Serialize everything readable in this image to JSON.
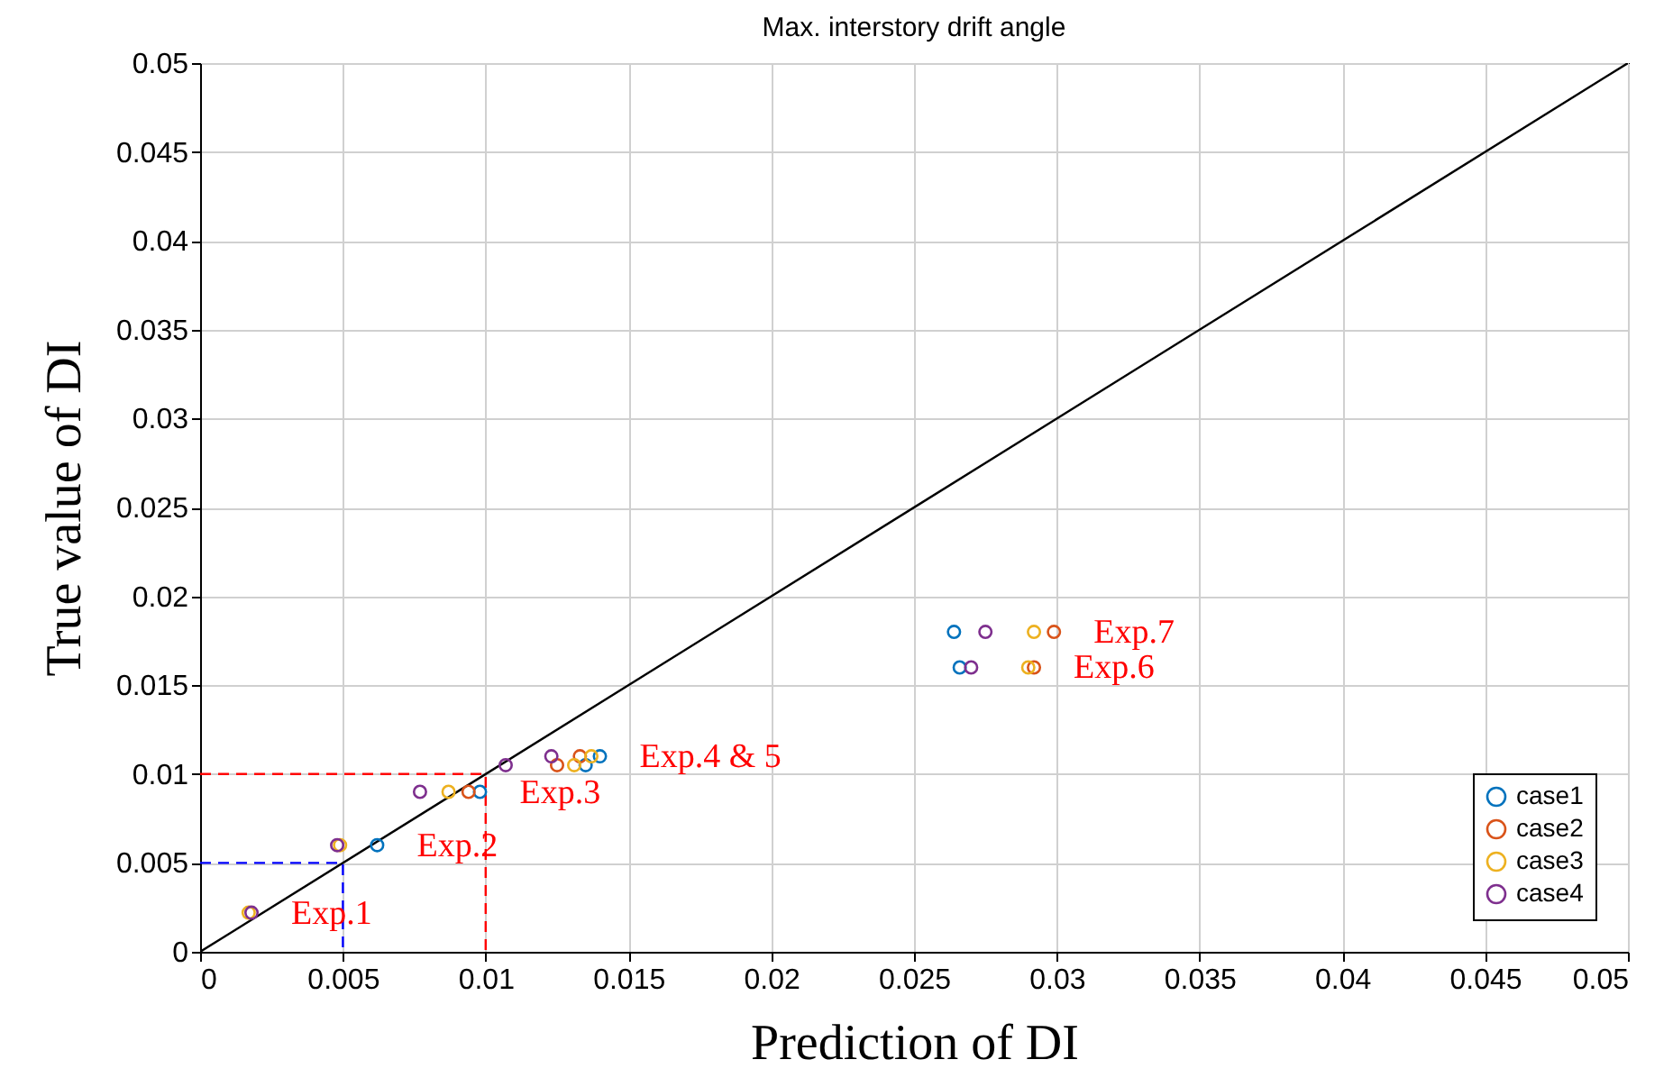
{
  "chart_data": {
    "type": "scatter",
    "title": "Max. interstory drift angle",
    "xlabel": "Prediction of DI",
    "ylabel": "True value of DI",
    "xlim": [
      0,
      0.05
    ],
    "ylim": [
      0,
      0.05
    ],
    "xticks": [
      0,
      0.005,
      0.01,
      0.015,
      0.02,
      0.025,
      0.03,
      0.035,
      0.04,
      0.045,
      0.05
    ],
    "yticks": [
      0,
      0.005,
      0.01,
      0.015,
      0.02,
      0.025,
      0.03,
      0.035,
      0.04,
      0.045,
      0.05
    ],
    "grid": true,
    "legend": "bottom right",
    "marker": "circle",
    "series": [
      {
        "type": "line",
        "color": "#000000",
        "line_style": "solid",
        "marker": "none",
        "x": [
          0,
          0.05
        ],
        "values": [
          0,
          0.05
        ]
      },
      {
        "type": "line",
        "color": "#ff0000",
        "line_style": "dashed",
        "marker": "none",
        "x": [
          0,
          0.01,
          0.01
        ],
        "values": [
          0.01,
          0.01,
          0
        ]
      },
      {
        "type": "line",
        "color": "#0000ff",
        "line_style": "dashed",
        "marker": "none",
        "x": [
          0,
          0.005,
          0.005
        ],
        "values": [
          0.005,
          0.005,
          0
        ]
      },
      {
        "name": "case1",
        "color": "#0072bd",
        "x": [
          null,
          0.0062,
          0.0098,
          0.0135,
          0.014,
          0.0266,
          0.0264
        ],
        "values": [
          null,
          0.006,
          0.009,
          0.0105,
          0.011,
          0.016,
          0.018
        ]
      },
      {
        "name": "case2",
        "color": "#d95319",
        "x": [
          null,
          null,
          0.0094,
          0.0125,
          0.0133,
          0.0292,
          0.0299
        ],
        "values": [
          null,
          null,
          0.009,
          0.0105,
          0.011,
          0.016,
          0.018
        ]
      },
      {
        "name": "case3",
        "color": "#edb120",
        "x": [
          0.0017,
          0.0049,
          0.0087,
          0.0131,
          0.0137,
          0.029,
          0.0292
        ],
        "values": [
          0.0022,
          0.006,
          0.009,
          0.0105,
          0.011,
          0.016,
          0.018
        ]
      },
      {
        "name": "case4",
        "color": "#7e2f8e",
        "x": [
          0.0018,
          0.0048,
          0.0077,
          0.0107,
          0.0123,
          0.027,
          0.0275
        ],
        "values": [
          0.0022,
          0.006,
          0.009,
          0.0105,
          0.011,
          0.016,
          0.018
        ]
      }
    ],
    "annotations": [
      {
        "text": "Exp.1",
        "x": 0.0018,
        "y": 0.0022
      },
      {
        "text": "Exp.2",
        "x": 0.0062,
        "y": 0.006
      },
      {
        "text": "Exp.3",
        "x": 0.0098,
        "y": 0.009
      },
      {
        "text": "Exp.4 & 5",
        "x": 0.014,
        "y": 0.011
      },
      {
        "text": "Exp.6",
        "x": 0.0292,
        "y": 0.016
      },
      {
        "text": "Exp.7",
        "x": 0.0299,
        "y": 0.018
      }
    ]
  }
}
